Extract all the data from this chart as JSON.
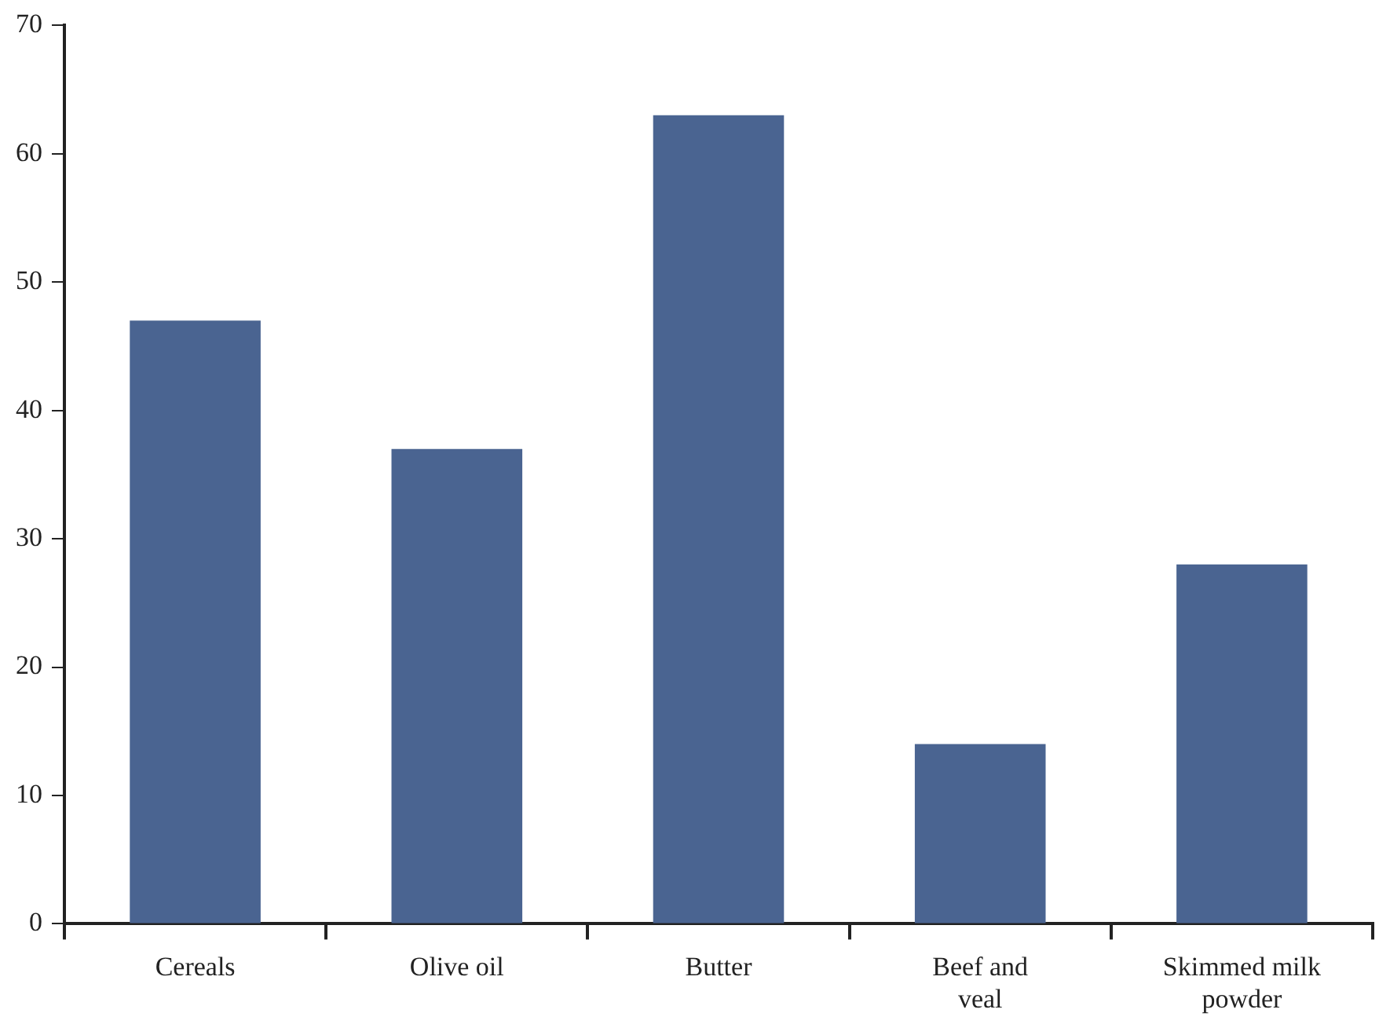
{
  "chart_data": {
    "type": "bar",
    "categories": [
      "Cereals",
      "Olive oil",
      "Butter",
      "Beef and veal",
      "Skimmed milk powder"
    ],
    "values": [
      47,
      37,
      63,
      14,
      28
    ],
    "color": "#4a6491",
    "ylim": [
      0,
      70
    ],
    "yticks": [
      0,
      10,
      20,
      30,
      40,
      50,
      60,
      70
    ],
    "grid": false,
    "legend": false
  }
}
